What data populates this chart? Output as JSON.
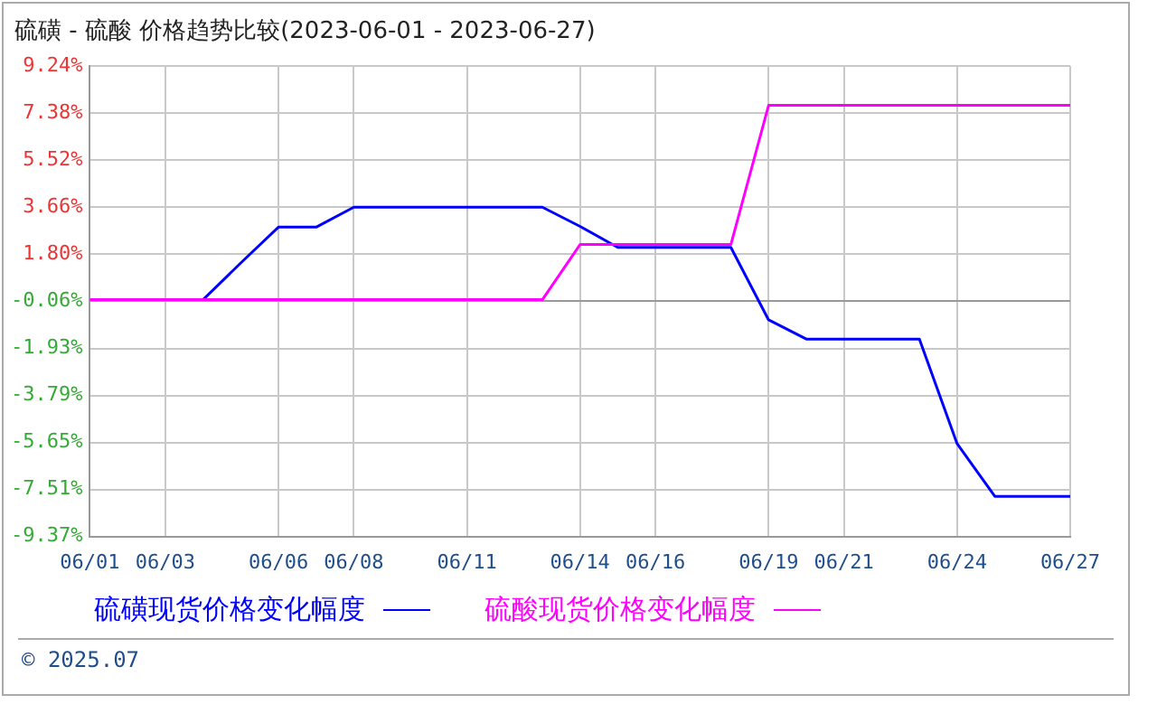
{
  "chart_data": {
    "type": "line",
    "title": "硫磺 - 硫酸 价格趋势比较(2023-06-01 - 2023-06-27)",
    "categories": [
      "06/01",
      null,
      "06/03",
      null,
      null,
      "06/06",
      null,
      "06/08",
      null,
      null,
      "06/11",
      null,
      null,
      "06/14",
      null,
      "06/16",
      null,
      null,
      "06/19",
      null,
      "06/21",
      null,
      null,
      "06/24",
      null,
      null,
      "06/27"
    ],
    "series": [
      {
        "name": "硫磺现货价格变化幅度",
        "color": "#0000ff",
        "values": [
          null,
          null,
          null,
          0,
          1.45,
          2.87,
          2.87,
          3.66,
          3.66,
          3.66,
          3.66,
          3.66,
          3.66,
          2.9,
          2.07,
          2.07,
          2.07,
          2.07,
          -0.8,
          -1.56,
          -1.56,
          -1.56,
          -1.56,
          -5.7,
          -7.78,
          -7.78,
          -7.78
        ]
      },
      {
        "name": "硫酸现货价格变化幅度",
        "color": "#ff00ff",
        "values": [
          0,
          0,
          0,
          0,
          0,
          0,
          0,
          0,
          0,
          0,
          0,
          0,
          0,
          2.18,
          2.18,
          2.18,
          2.18,
          2.18,
          7.69,
          7.69,
          7.69,
          7.69,
          7.69,
          7.69,
          7.69,
          7.69,
          7.69
        ]
      }
    ],
    "ylim": [
      -9.37,
      9.24
    ],
    "yticks": [
      {
        "value": 9.24,
        "label": "9.24%"
      },
      {
        "value": 7.38,
        "label": "7.38%"
      },
      {
        "value": 5.52,
        "label": "5.52%"
      },
      {
        "value": 3.66,
        "label": "3.66%"
      },
      {
        "value": 1.8,
        "label": "1.80%"
      },
      {
        "value": -0.06,
        "label": "-0.06%"
      },
      {
        "value": -1.93,
        "label": "-1.93%"
      },
      {
        "value": -3.79,
        "label": "-3.79%"
      },
      {
        "value": -5.65,
        "label": "-5.65%"
      },
      {
        "value": -7.51,
        "label": "-7.51%"
      },
      {
        "value": -9.37,
        "label": "-9.37%"
      }
    ],
    "grid": true,
    "legend": "bottom",
    "marker": "none",
    "line_style": "solid",
    "annotations": [
      "© 2025.07"
    ]
  }
}
